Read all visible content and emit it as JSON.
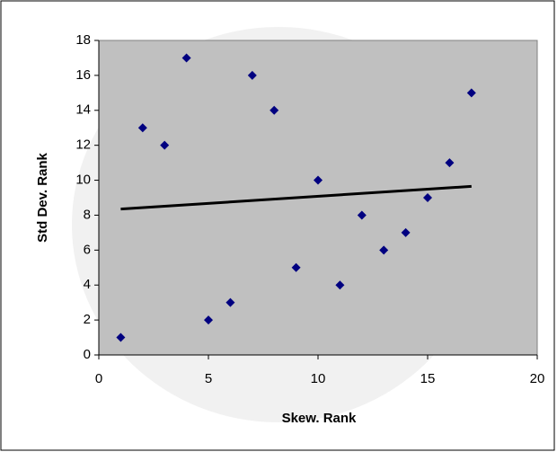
{
  "chart_data": {
    "type": "scatter",
    "x_label": "Skew. Rank",
    "y_label": "Std Dev. Rank",
    "series": [
      {
        "color": "#000080",
        "x": [
          1,
          2,
          3,
          4,
          5,
          6,
          7,
          8,
          9,
          10,
          11,
          12,
          13,
          14,
          15,
          16,
          17
        ],
        "values": [
          1,
          13,
          12,
          17,
          2,
          3,
          16,
          14,
          5,
          10,
          4,
          8,
          6,
          7,
          9,
          11,
          15
        ]
      }
    ],
    "trendline": {
      "color": "#000000",
      "x": [
        1,
        17
      ],
      "values": [
        8.35,
        9.65
      ]
    },
    "xlim": [
      0,
      20
    ],
    "xticks": [
      0,
      5,
      10,
      15,
      20
    ],
    "ylim": [
      0,
      18
    ],
    "yticks": [
      0,
      2,
      4,
      6,
      8,
      10,
      12,
      14,
      16,
      18
    ],
    "grid": false,
    "plot_background": "#c0c0c0"
  }
}
